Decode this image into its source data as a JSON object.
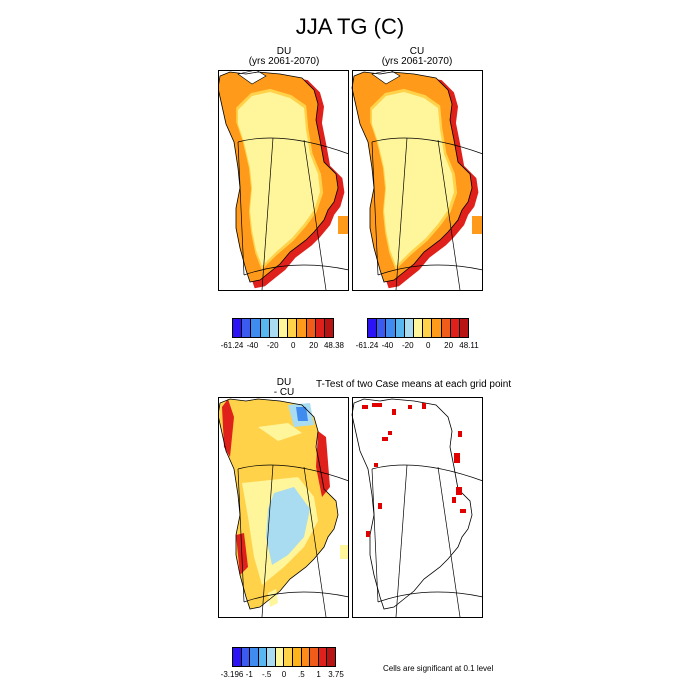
{
  "figure": {
    "title": "JJA TG (C)",
    "panels": [
      {
        "id": "du",
        "title_line1": "DU",
        "title_line2": "(yrs 2061-2070)"
      },
      {
        "id": "cu",
        "title_line1": "CU",
        "title_line2": "(yrs 2061-2070)"
      },
      {
        "id": "diff",
        "title_line1": "DU",
        "title_line2": "- CU"
      },
      {
        "id": "ttest",
        "title": "T-Test of two Case means at each grid point"
      }
    ],
    "colorbars": {
      "du": {
        "labels": [
          "-61.24",
          "-40",
          "-20",
          "0",
          "20",
          "48.38"
        ],
        "colors": [
          "#2b13f5",
          "#3b5bf0",
          "#3f8bf0",
          "#58b6f0",
          "#a9dcf0",
          "#fff59a",
          "#ffd24a",
          "#ff9a1a",
          "#f25c1a",
          "#e0201a",
          "#b81414"
        ]
      },
      "cu": {
        "labels": [
          "-61.24",
          "-40",
          "-20",
          "0",
          "20",
          "48.11"
        ],
        "colors": [
          "#2b13f5",
          "#3b5bf0",
          "#3f8bf0",
          "#58b6f0",
          "#a9dcf0",
          "#fff59a",
          "#ffd24a",
          "#ff9a1a",
          "#f25c1a",
          "#e0201a",
          "#b81414"
        ]
      },
      "diff": {
        "labels": [
          "-3.196",
          "-1",
          "-.5",
          "0",
          ".5",
          "1",
          "3.75"
        ],
        "colors": [
          "#2b13f5",
          "#3b5bf0",
          "#3f8bf0",
          "#58b6f0",
          "#a9dcf0",
          "#fff59a",
          "#ffd24a",
          "#ffb31a",
          "#ff8a1a",
          "#f25c1a",
          "#e0201a",
          "#b81414"
        ]
      }
    },
    "significance_note": "Cells are significant at 0.1 level",
    "colors": {
      "interior": "#fff59a",
      "margin_light": "#ffd24a",
      "margin_orange": "#ff9a1a",
      "margin_red": "#e0201a",
      "diff_blue": "#a9dcf0",
      "sig_red": "#e00000"
    }
  }
}
